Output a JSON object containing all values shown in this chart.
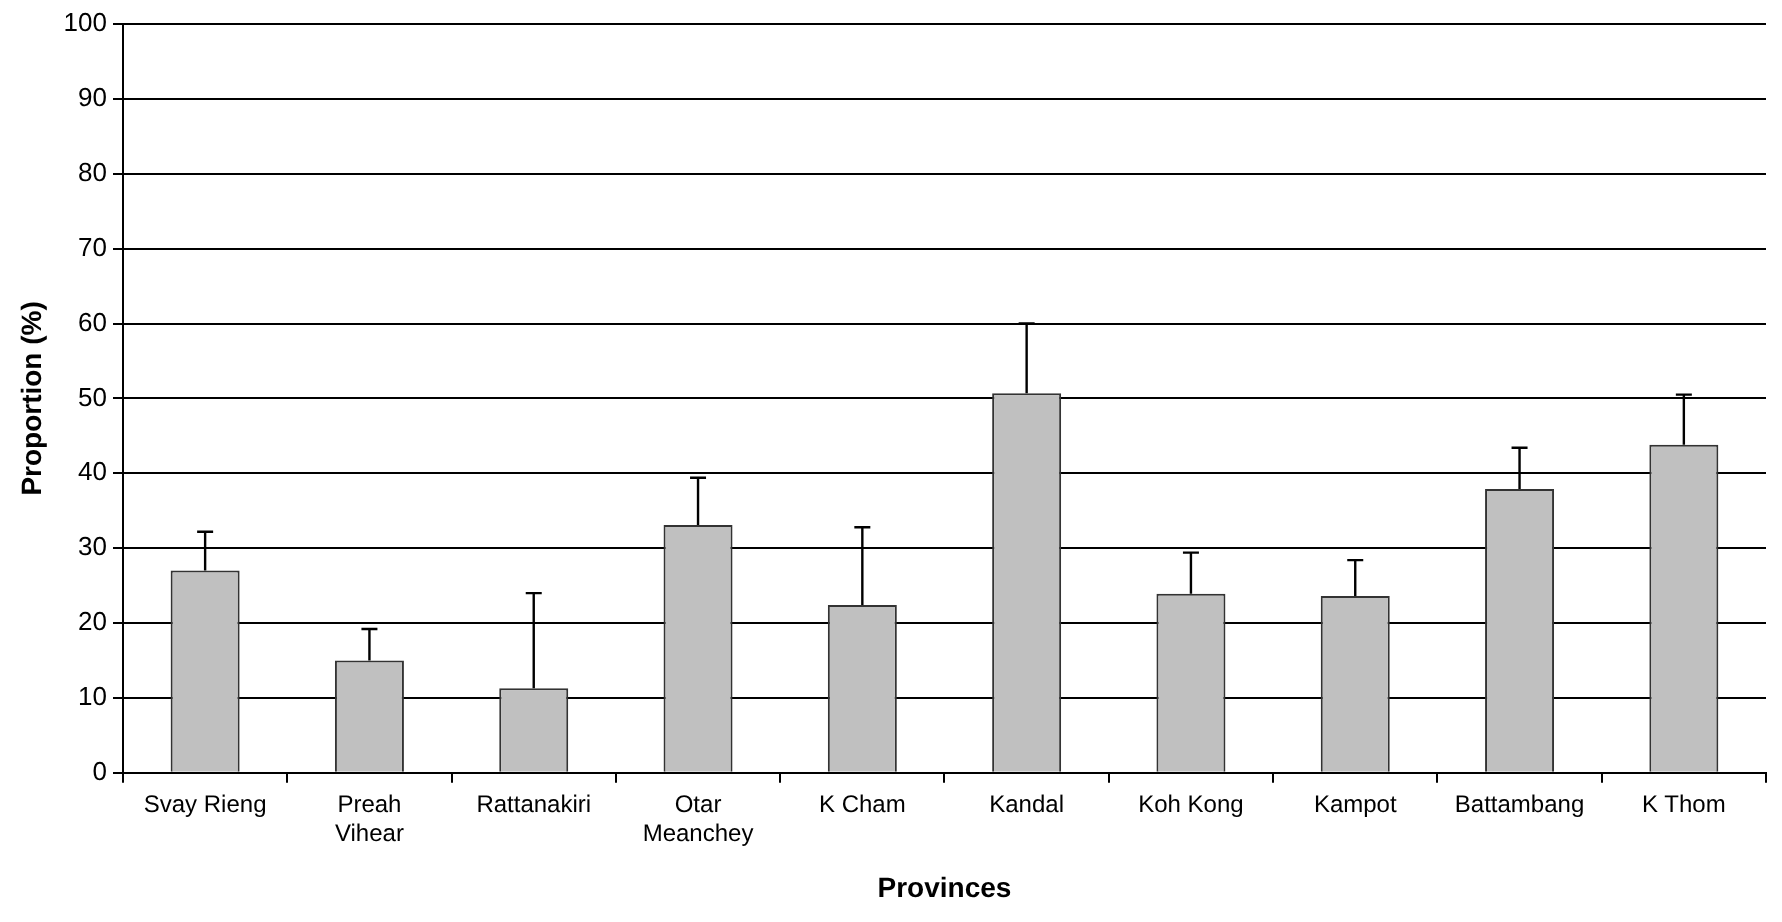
{
  "chart_data": {
    "type": "bar",
    "xlabel": "Provinces",
    "ylabel": "Proportion (%)",
    "categories": [
      "Svay Rieng",
      "Preah Vihear",
      "Rattanakiri",
      "Otar Meanchey",
      "K Cham",
      "Kandal",
      "Koh Kong",
      "Kampot",
      "Battambang",
      "K Thom"
    ],
    "values": [
      27,
      15,
      11.3,
      33.1,
      22.4,
      50.7,
      23.9,
      23.6,
      37.9,
      43.8
    ],
    "errors": [
      [
        27,
        32.2
      ],
      [
        15,
        19.2
      ],
      [
        11.3,
        24
      ],
      [
        33.1,
        39.4
      ],
      [
        22.4,
        32.8
      ],
      [
        50.7,
        60
      ],
      [
        23.9,
        29.4
      ],
      [
        23.6,
        28.4
      ],
      [
        37.9,
        43.4
      ],
      [
        43.8,
        50.5
      ]
    ],
    "color": "#c0c0c0",
    "ylim": [
      0,
      100
    ],
    "yticks": [
      0,
      10,
      20,
      30,
      40,
      50,
      60,
      70,
      80,
      90,
      100
    ],
    "grid": "y",
    "legend": false
  }
}
